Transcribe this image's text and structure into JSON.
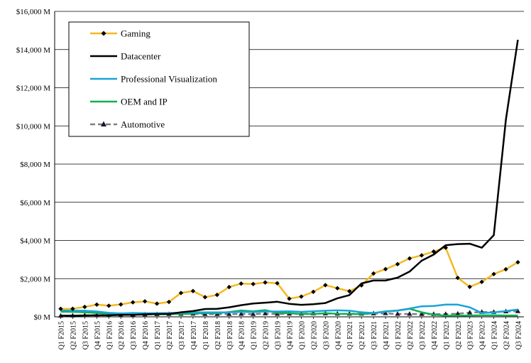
{
  "chart_data": {
    "type": "line",
    "title": "",
    "xlabel": "",
    "ylabel": "",
    "ylim": [
      0,
      16000
    ],
    "yticks": [
      0,
      2000,
      4000,
      6000,
      8000,
      10000,
      12000,
      14000,
      16000
    ],
    "ytick_labels": [
      "$0 M",
      "$2,000 M",
      "$4,000 M",
      "$6,000 M",
      "$8,000 M",
      "$10,000 M",
      "$12,000 M",
      "$14,000 M",
      "$16,000 M"
    ],
    "grid": "horizontal",
    "legend_position": "top-left",
    "categories": [
      "Q1 F2015",
      "Q2 F2015",
      "Q3 F2015",
      "Q4 F2015",
      "Q1 F2016",
      "Q2 F2016",
      "Q3 F2016",
      "Q4 F2016",
      "Q1 F2017",
      "Q2 F2017",
      "Q3 F2017",
      "Q4 F2017",
      "Q1 F2018",
      "Q2 F2018",
      "Q3 F2018",
      "Q4 F2018",
      "Q1 F2019",
      "Q2 F2019",
      "Q3 F2019",
      "Q4 F2019",
      "Q1 F2020",
      "Q2 F2020",
      "Q3 F2020",
      "Q4 F2020",
      "Q1 F2021",
      "Q2 F2021",
      "Q3 F2021",
      "Q4 F2021",
      "Q1 F2022",
      "Q2 F2022",
      "Q3 F2022",
      "Q4 F2022",
      "Q1 F2023",
      "Q2 F2023",
      "Q3 F2023",
      "Q4 F2023",
      "Q1 F2024",
      "Q2 F2024",
      "Q3 F2024"
    ],
    "xtick_labels": [
      "Q1 F2015",
      "Q2 F2015",
      "Q3 F2015",
      "Q4 F2015",
      "Q1 F2016",
      "Q2 F2016",
      "Q3 F2016",
      "Q4 F2016",
      "Q1 F2017",
      "Q2 F2017",
      "Q3 F2017",
      "Q4 F2017",
      "Q1 F2018",
      "Q2 F2018",
      "Q3 F2018",
      "Q4 F2018",
      "Q1 F2019",
      "Q2 F2019",
      "Q3 F2019",
      "Q4 F2019",
      "Q1 F2020",
      "Q2 F2020",
      "Q3 F2020",
      "Q4 F2020",
      "Q1 F2021",
      "Q2 F2021",
      "Q3 F2021",
      "Q4 F2021",
      "Q1 F2022",
      "Q2 F2022",
      "Q3 F2022",
      "Q4 F2022",
      "Q1 F2023",
      "Q2 F2023",
      "Q3 F2023",
      "Q4 F2023",
      "Q1 F2024",
      "Q2 F2024",
      "Q3 F2024"
    ],
    "series": [
      {
        "name": "Gaming",
        "color": "#f5b921",
        "marker": "diamond",
        "values": [
          420,
          420,
          520,
          640,
          580,
          650,
          760,
          810,
          690,
          780,
          1250,
          1350,
          1030,
          1150,
          1560,
          1740,
          1720,
          1800,
          1760,
          950,
          1060,
          1310,
          1660,
          1500,
          1340,
          1650,
          2270,
          2500,
          2760,
          3060,
          3220,
          3420,
          3620,
          2040,
          1570,
          1830,
          2240,
          2490,
          2860
        ]
      },
      {
        "name": "Datacenter",
        "color": "#000000",
        "marker": "none",
        "values": [
          60,
          60,
          70,
          80,
          80,
          100,
          100,
          130,
          150,
          150,
          240,
          300,
          410,
          420,
          500,
          610,
          700,
          740,
          790,
          680,
          630,
          660,
          720,
          970,
          1140,
          1750,
          1900,
          1900,
          2050,
          2370,
          2940,
          3260,
          3750,
          3810,
          3830,
          3620,
          4280,
          10320,
          14510
        ]
      },
      {
        "name": "Professional Visualization",
        "color": "#1aa3d9",
        "marker": "none",
        "values": [
          350,
          320,
          320,
          280,
          210,
          180,
          200,
          190,
          190,
          200,
          210,
          230,
          230,
          230,
          240,
          260,
          250,
          280,
          280,
          290,
          260,
          290,
          320,
          340,
          320,
          240,
          200,
          270,
          330,
          430,
          550,
          570,
          640,
          640,
          500,
          200,
          230,
          300,
          380
        ]
      },
      {
        "name": "OEM and IP",
        "color": "#10b050",
        "marker": "none",
        "values": [
          270,
          260,
          240,
          200,
          170,
          160,
          150,
          150,
          130,
          150,
          150,
          170,
          200,
          190,
          250,
          330,
          290,
          350,
          210,
          190,
          150,
          150,
          190,
          160,
          150,
          140,
          190,
          290,
          330,
          420,
          240,
          110,
          60,
          60,
          70,
          80,
          80,
          70,
          70
        ]
      },
      {
        "name": "Automotive",
        "color": "#7f7f7f",
        "marker": "triangle",
        "values": [
          50,
          60,
          80,
          90,
          90,
          100,
          110,
          120,
          130,
          140,
          150,
          160,
          140,
          140,
          140,
          150,
          140,
          170,
          150,
          160,
          160,
          170,
          170,
          160,
          160,
          160,
          170,
          180,
          150,
          150,
          140,
          140,
          140,
          160,
          220,
          250,
          250,
          280,
          290
        ]
      }
    ]
  }
}
